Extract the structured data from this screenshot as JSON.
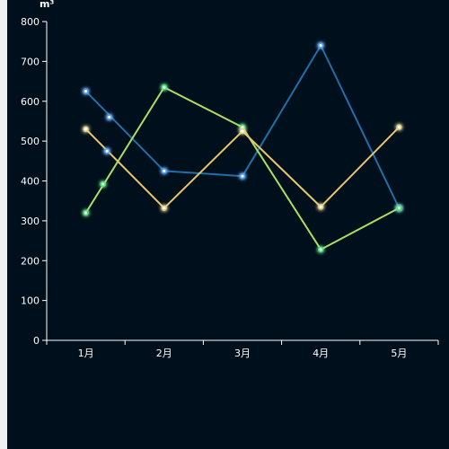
{
  "chart_data": {
    "type": "line",
    "categories": [
      "1月",
      "2月",
      "3月",
      "4月",
      "5月"
    ],
    "y_unit": "m³",
    "ylim": [
      0,
      800
    ],
    "y_ticks": [
      "0",
      "100",
      "200",
      "300",
      "400",
      "500",
      "600",
      "700",
      "800"
    ],
    "grid": false,
    "series": [
      {
        "color": "#1f6fa8",
        "values": [
          625,
          425,
          412,
          740,
          332
        ],
        "extra_points": [
          {
            "x_offset": 0.3,
            "y": 560
          },
          {
            "x_offset": 0.27,
            "y": 475
          }
        ]
      },
      {
        "color": "#a8e063",
        "values": [
          320,
          635,
          535,
          228,
          332
        ],
        "extra_points": [
          {
            "x_offset": 0.22,
            "y": 392
          }
        ]
      },
      {
        "color": "#e8c76a",
        "values": [
          530,
          332,
          525,
          335,
          535
        ],
        "extra_points": []
      }
    ],
    "marker_glow_colors": [
      "#3ea0ff",
      "#39e86a",
      "#e8d27a"
    ]
  }
}
